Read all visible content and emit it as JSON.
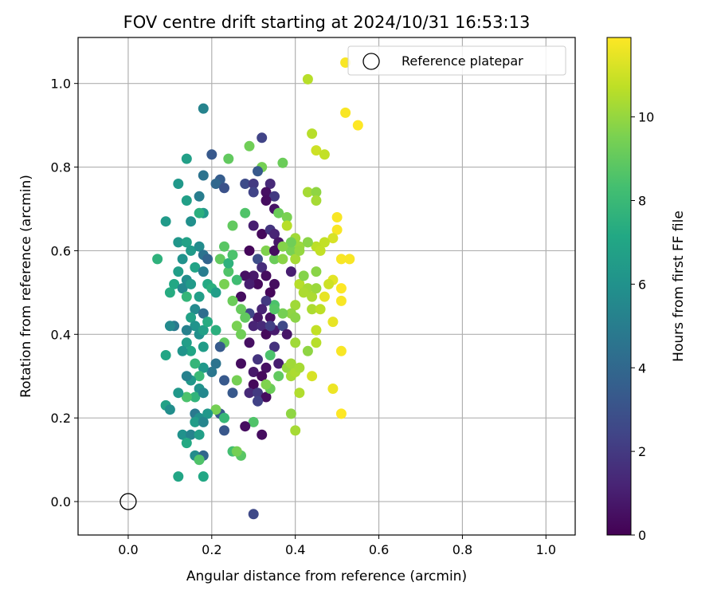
{
  "chart_data": {
    "type": "scatter",
    "title": "FOV centre drift starting at 2024/10/31 16:53:13",
    "xlabel": "Angular distance from reference (arcmin)",
    "ylabel": "Rotation from reference (arcmin)",
    "xlim": [
      -0.12,
      1.07
    ],
    "ylim": [
      -0.08,
      1.11
    ],
    "xticks": [
      "0.0",
      "0.2",
      "0.4",
      "0.6",
      "0.8",
      "1.0"
    ],
    "yticks": [
      "0.0",
      "0.2",
      "0.4",
      "0.6",
      "0.8",
      "1.0"
    ],
    "grid": true,
    "legend": {
      "position": "top-right",
      "entries": [
        "Reference platepar"
      ]
    },
    "reference_point": {
      "label": "Reference platepar",
      "x": 0.0,
      "y": 0.0
    },
    "colorbar": {
      "label": "Hours from first FF file",
      "colormap": "viridis",
      "range": [
        0,
        11.9
      ],
      "ticks": [
        "0",
        "2",
        "4",
        "6",
        "8",
        "10"
      ]
    },
    "points": [
      [
        0.52,
        1.05,
        11.8
      ],
      [
        0.43,
        1.01,
        10.6
      ],
      [
        0.52,
        0.93,
        11.8
      ],
      [
        0.55,
        0.9,
        11.9
      ],
      [
        0.44,
        0.88,
        10.6
      ],
      [
        0.45,
        0.84,
        11.0
      ],
      [
        0.47,
        0.83,
        10.8
      ],
      [
        0.18,
        0.94,
        5.3
      ],
      [
        0.2,
        0.83,
        3.3
      ],
      [
        0.32,
        0.87,
        2.4
      ],
      [
        0.29,
        0.85,
        9.3
      ],
      [
        0.37,
        0.81,
        9.2
      ],
      [
        0.32,
        0.8,
        9.4
      ],
      [
        0.14,
        0.82,
        6.7
      ],
      [
        0.24,
        0.82,
        9.0
      ],
      [
        0.31,
        0.79,
        3.3
      ],
      [
        0.43,
        0.74,
        10.3
      ],
      [
        0.45,
        0.74,
        9.9
      ],
      [
        0.45,
        0.72,
        10.3
      ],
      [
        0.34,
        0.76,
        1.4
      ],
      [
        0.33,
        0.74,
        0.5
      ],
      [
        0.35,
        0.73,
        2.0
      ],
      [
        0.28,
        0.76,
        2.7
      ],
      [
        0.3,
        0.76,
        2.0
      ],
      [
        0.3,
        0.74,
        2.4
      ],
      [
        0.22,
        0.77,
        3.5
      ],
      [
        0.21,
        0.76,
        4.0
      ],
      [
        0.23,
        0.75,
        3.0
      ],
      [
        0.18,
        0.78,
        4.5
      ],
      [
        0.17,
        0.73,
        5.0
      ],
      [
        0.12,
        0.76,
        6.3
      ],
      [
        0.14,
        0.72,
        6.7
      ],
      [
        0.18,
        0.69,
        6.3
      ],
      [
        0.17,
        0.69,
        7.5
      ],
      [
        0.15,
        0.67,
        5.9
      ],
      [
        0.09,
        0.67,
        6.4
      ],
      [
        0.33,
        0.72,
        0.4
      ],
      [
        0.35,
        0.7,
        0.6
      ],
      [
        0.36,
        0.69,
        9.2
      ],
      [
        0.38,
        0.68,
        9.5
      ],
      [
        0.38,
        0.66,
        10.6
      ],
      [
        0.5,
        0.68,
        11.8
      ],
      [
        0.5,
        0.65,
        11.8
      ],
      [
        0.49,
        0.63,
        11.2
      ],
      [
        0.47,
        0.62,
        10.8
      ],
      [
        0.45,
        0.61,
        10.7
      ],
      [
        0.4,
        0.63,
        10.2
      ],
      [
        0.41,
        0.61,
        10.1
      ],
      [
        0.43,
        0.62,
        9.8
      ],
      [
        0.46,
        0.6,
        10.8
      ],
      [
        0.39,
        0.6,
        9.5
      ],
      [
        0.25,
        0.66,
        9.0
      ],
      [
        0.28,
        0.69,
        8.6
      ],
      [
        0.3,
        0.66,
        1.0
      ],
      [
        0.32,
        0.64,
        0.3
      ],
      [
        0.34,
        0.65,
        1.8
      ],
      [
        0.35,
        0.64,
        1.2
      ],
      [
        0.36,
        0.62,
        0.7
      ],
      [
        0.33,
        0.6,
        9.6
      ],
      [
        0.35,
        0.58,
        9.2
      ],
      [
        0.37,
        0.58,
        9.8
      ],
      [
        0.29,
        0.6,
        0.2
      ],
      [
        0.31,
        0.58,
        2.8
      ],
      [
        0.32,
        0.56,
        1.5
      ],
      [
        0.3,
        0.54,
        0.8
      ],
      [
        0.33,
        0.54,
        0.4
      ],
      [
        0.31,
        0.52,
        0.3
      ],
      [
        0.28,
        0.54,
        0.5
      ],
      [
        0.29,
        0.52,
        1.0
      ],
      [
        0.35,
        0.52,
        0.4
      ],
      [
        0.34,
        0.5,
        0.2
      ],
      [
        0.39,
        0.55,
        1.0
      ],
      [
        0.39,
        0.62,
        9.3
      ],
      [
        0.4,
        0.58,
        10.3
      ],
      [
        0.12,
        0.62,
        6.2
      ],
      [
        0.14,
        0.62,
        6.8
      ],
      [
        0.15,
        0.6,
        6.4
      ],
      [
        0.17,
        0.61,
        5.7
      ],
      [
        0.18,
        0.59,
        4.5
      ],
      [
        0.19,
        0.58,
        3.8
      ],
      [
        0.13,
        0.58,
        6.0
      ],
      [
        0.07,
        0.58,
        7.6
      ],
      [
        0.16,
        0.56,
        6.9
      ],
      [
        0.18,
        0.55,
        5.0
      ],
      [
        0.12,
        0.55,
        6.6
      ],
      [
        0.11,
        0.52,
        7.1
      ],
      [
        0.14,
        0.53,
        5.8
      ],
      [
        0.13,
        0.51,
        5.5
      ],
      [
        0.15,
        0.52,
        6.4
      ],
      [
        0.19,
        0.52,
        7.2
      ],
      [
        0.2,
        0.51,
        7.5
      ],
      [
        0.21,
        0.5,
        6.6
      ],
      [
        0.1,
        0.5,
        7.3
      ],
      [
        0.14,
        0.49,
        7.8
      ],
      [
        0.17,
        0.49,
        6.6
      ],
      [
        0.23,
        0.61,
        8.8
      ],
      [
        0.22,
        0.58,
        9.0
      ],
      [
        0.24,
        0.55,
        8.6
      ],
      [
        0.23,
        0.52,
        9.5
      ],
      [
        0.26,
        0.53,
        8.2
      ],
      [
        0.24,
        0.57,
        7.6
      ],
      [
        0.51,
        0.58,
        11.8
      ],
      [
        0.53,
        0.58,
        11.8
      ],
      [
        0.49,
        0.53,
        11.4
      ],
      [
        0.51,
        0.51,
        11.9
      ],
      [
        0.48,
        0.52,
        11.0
      ],
      [
        0.41,
        0.52,
        10.6
      ],
      [
        0.43,
        0.51,
        10.3
      ],
      [
        0.44,
        0.49,
        10.4
      ],
      [
        0.45,
        0.51,
        10.1
      ],
      [
        0.45,
        0.55,
        9.8
      ],
      [
        0.47,
        0.49,
        11.5
      ],
      [
        0.51,
        0.48,
        11.8
      ],
      [
        0.44,
        0.46,
        10.4
      ],
      [
        0.46,
        0.46,
        10.7
      ],
      [
        0.4,
        0.47,
        10.2
      ],
      [
        0.39,
        0.45,
        9.9
      ],
      [
        0.37,
        0.45,
        9.4
      ],
      [
        0.35,
        0.47,
        8.5
      ],
      [
        0.33,
        0.48,
        2.0
      ],
      [
        0.32,
        0.46,
        1.2
      ],
      [
        0.34,
        0.44,
        0.5
      ],
      [
        0.31,
        0.44,
        0.8
      ],
      [
        0.3,
        0.42,
        1.2
      ],
      [
        0.29,
        0.45,
        2.5
      ],
      [
        0.27,
        0.49,
        0.4
      ],
      [
        0.25,
        0.48,
        9.2
      ],
      [
        0.27,
        0.46,
        9.1
      ],
      [
        0.28,
        0.44,
        9.0
      ],
      [
        0.26,
        0.42,
        9.5
      ],
      [
        0.27,
        0.4,
        9.3
      ],
      [
        0.16,
        0.46,
        5.6
      ],
      [
        0.18,
        0.45,
        4.3
      ],
      [
        0.15,
        0.44,
        6.8
      ],
      [
        0.16,
        0.42,
        6.1
      ],
      [
        0.14,
        0.41,
        5.2
      ],
      [
        0.17,
        0.4,
        5.9
      ],
      [
        0.18,
        0.41,
        6.7
      ],
      [
        0.19,
        0.43,
        7.3
      ],
      [
        0.21,
        0.41,
        7.5
      ],
      [
        0.11,
        0.42,
        4.8
      ],
      [
        0.14,
        0.38,
        6.6
      ],
      [
        0.15,
        0.36,
        7.0
      ],
      [
        0.18,
        0.37,
        6.5
      ],
      [
        0.23,
        0.38,
        9.0
      ],
      [
        0.22,
        0.37,
        3.4
      ],
      [
        0.32,
        0.42,
        1.4
      ],
      [
        0.33,
        0.4,
        0.3
      ],
      [
        0.35,
        0.41,
        0.9
      ],
      [
        0.37,
        0.42,
        2.6
      ],
      [
        0.38,
        0.4,
        0.7
      ],
      [
        0.35,
        0.37,
        1.7
      ],
      [
        0.34,
        0.35,
        8.5
      ],
      [
        0.36,
        0.33,
        1.0
      ],
      [
        0.33,
        0.32,
        0.5
      ],
      [
        0.31,
        0.34,
        1.8
      ],
      [
        0.3,
        0.31,
        0.8
      ],
      [
        0.32,
        0.3,
        0.3
      ],
      [
        0.3,
        0.28,
        0.2
      ],
      [
        0.29,
        0.26,
        1.4
      ],
      [
        0.31,
        0.26,
        2.0
      ],
      [
        0.33,
        0.25,
        0.4
      ],
      [
        0.31,
        0.24,
        2.3
      ],
      [
        0.34,
        0.27,
        9.2
      ],
      [
        0.33,
        0.28,
        9.6
      ],
      [
        0.36,
        0.3,
        9.0
      ],
      [
        0.38,
        0.32,
        10.0
      ],
      [
        0.39,
        0.3,
        10.3
      ],
      [
        0.4,
        0.31,
        10.4
      ],
      [
        0.39,
        0.33,
        10.2
      ],
      [
        0.41,
        0.32,
        10.3
      ],
      [
        0.44,
        0.3,
        11.2
      ],
      [
        0.43,
        0.36,
        9.9
      ],
      [
        0.45,
        0.38,
        10.6
      ],
      [
        0.45,
        0.41,
        10.8
      ],
      [
        0.4,
        0.38,
        10.2
      ],
      [
        0.4,
        0.44,
        9.8
      ],
      [
        0.51,
        0.36,
        11.8
      ],
      [
        0.49,
        0.43,
        11.5
      ],
      [
        0.49,
        0.27,
        11.6
      ],
      [
        0.51,
        0.21,
        11.9
      ],
      [
        0.41,
        0.26,
        10.5
      ],
      [
        0.39,
        0.21,
        9.9
      ],
      [
        0.4,
        0.17,
        10.3
      ],
      [
        0.32,
        0.16,
        0.4
      ],
      [
        0.3,
        0.19,
        8.6
      ],
      [
        0.28,
        0.18,
        0.4
      ],
      [
        0.25,
        0.12,
        8.3
      ],
      [
        0.27,
        0.11,
        8.8
      ],
      [
        0.26,
        0.12,
        9.4
      ],
      [
        0.23,
        0.17,
        3.2
      ],
      [
        0.22,
        0.21,
        3.4
      ],
      [
        0.21,
        0.22,
        9.4
      ],
      [
        0.23,
        0.2,
        7.9
      ],
      [
        0.25,
        0.26,
        3.3
      ],
      [
        0.26,
        0.29,
        9.4
      ],
      [
        0.23,
        0.29,
        3.3
      ],
      [
        0.21,
        0.33,
        4.5
      ],
      [
        0.2,
        0.31,
        4.7
      ],
      [
        0.18,
        0.32,
        6.3
      ],
      [
        0.16,
        0.33,
        7.8
      ],
      [
        0.17,
        0.3,
        8.0
      ],
      [
        0.15,
        0.29,
        6.3
      ],
      [
        0.14,
        0.3,
        5.2
      ],
      [
        0.17,
        0.27,
        6.1
      ],
      [
        0.16,
        0.25,
        7.7
      ],
      [
        0.18,
        0.26,
        5.5
      ],
      [
        0.14,
        0.25,
        8.5
      ],
      [
        0.12,
        0.26,
        6.3
      ],
      [
        0.09,
        0.23,
        6.8
      ],
      [
        0.1,
        0.22,
        5.8
      ],
      [
        0.16,
        0.21,
        4.8
      ],
      [
        0.17,
        0.2,
        5.9
      ],
      [
        0.19,
        0.21,
        6.3
      ],
      [
        0.16,
        0.19,
        6.5
      ],
      [
        0.18,
        0.19,
        5.4
      ],
      [
        0.13,
        0.16,
        6.0
      ],
      [
        0.15,
        0.16,
        5.3
      ],
      [
        0.17,
        0.16,
        6.7
      ],
      [
        0.14,
        0.14,
        7.2
      ],
      [
        0.16,
        0.11,
        5.7
      ],
      [
        0.17,
        0.1,
        6.3
      ],
      [
        0.18,
        0.11,
        3.9
      ],
      [
        0.17,
        0.1,
        8.6
      ],
      [
        0.12,
        0.06,
        7.0
      ],
      [
        0.18,
        0.06,
        7.1
      ],
      [
        0.09,
        0.35,
        7.0
      ],
      [
        0.1,
        0.42,
        5.6
      ],
      [
        0.13,
        0.36,
        6.1
      ],
      [
        0.3,
        -0.03,
        2.6
      ],
      [
        0.35,
        0.46,
        8.7
      ],
      [
        0.34,
        0.42,
        2.2
      ],
      [
        0.29,
        0.38,
        0.5
      ],
      [
        0.27,
        0.33,
        0.4
      ],
      [
        0.35,
        0.6,
        0.4
      ],
      [
        0.37,
        0.61,
        9.7
      ],
      [
        0.41,
        0.6,
        10.0
      ],
      [
        0.42,
        0.5,
        10.4
      ],
      [
        0.42,
        0.54,
        9.7
      ],
      [
        0.25,
        0.59,
        8.5
      ]
    ]
  }
}
